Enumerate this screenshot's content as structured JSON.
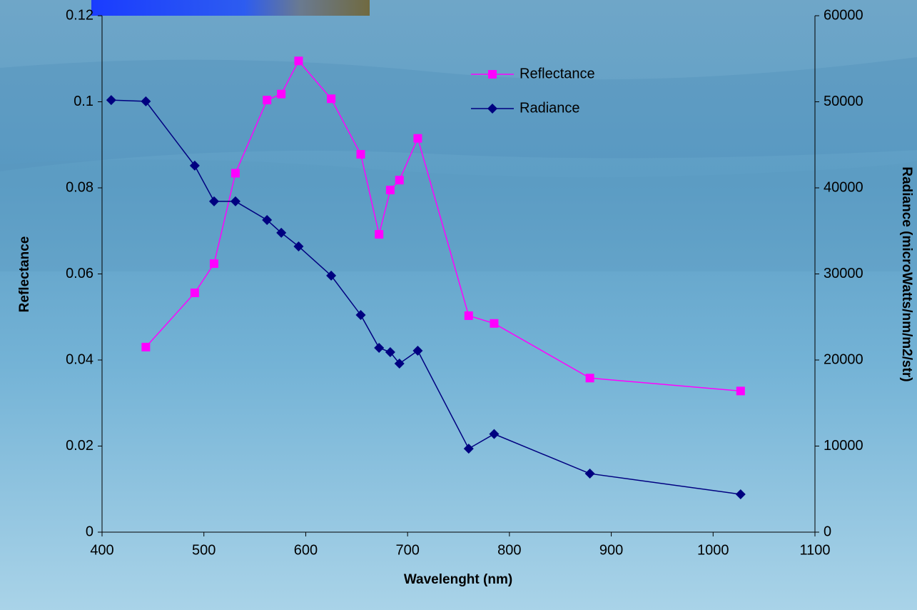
{
  "chart_data": {
    "type": "line",
    "x_label": "Wavelenght (nm)",
    "y_label": "Reflectance",
    "y2_label": "Radiance (microWatts/nm/m2/str)",
    "xlim": [
      400,
      1100
    ],
    "xticks": [
      400,
      500,
      600,
      700,
      800,
      900,
      1000,
      1100
    ],
    "ylim": [
      0,
      0.12
    ],
    "yticks": [
      0,
      0.02,
      0.04,
      0.06,
      0.08,
      0.1,
      0.12
    ],
    "y2lim": [
      0,
      60000
    ],
    "y2ticks": [
      0,
      10000,
      20000,
      30000,
      40000,
      50000,
      60000
    ],
    "series": [
      {
        "name": "Reflectance",
        "color": "#ff00ff",
        "marker": "square",
        "x": [
          443,
          491,
          510,
          531,
          562,
          576,
          593,
          625,
          654,
          672,
          683,
          692,
          710,
          760,
          785,
          879,
          1027
        ],
        "values": [
          0.043,
          0.0556,
          0.0624,
          0.0834,
          0.1004,
          0.1018,
          0.1095,
          0.1007,
          0.0878,
          0.0692,
          0.0795,
          0.0818,
          0.0915,
          0.0503,
          0.0485,
          0.0358,
          0.0328
        ]
      },
      {
        "name": "Radiance",
        "color": "#000080",
        "marker": "diamond",
        "axis": "y2",
        "x": [
          409,
          443,
          491,
          510,
          531,
          562,
          576,
          593,
          625,
          654,
          672,
          683,
          692,
          710,
          760,
          785,
          879,
          1027
        ],
        "values": [
          50200,
          50050,
          42580,
          38430,
          38430,
          36270,
          34780,
          33200,
          29800,
          25230,
          21410,
          20910,
          19590,
          21080,
          9700,
          11400,
          6800,
          4400
        ]
      }
    ]
  }
}
